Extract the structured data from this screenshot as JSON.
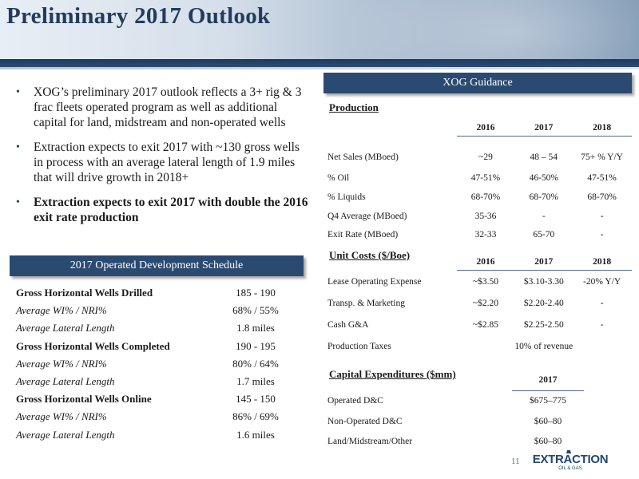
{
  "title": "Preliminary 2017 Outlook",
  "bullets": [
    {
      "text": "XOG’s preliminary 2017 outlook reflects a 3+ rig & 3 frac fleets operated program as well as additional capital for land, midstream and non-operated wells",
      "bold": false
    },
    {
      "text": "Extraction expects to exit 2017 with ~130 gross wells in process with an average lateral length of 1.9 miles that will drive growth in 2018+",
      "bold": false
    },
    {
      "text": "Extraction expects to exit 2017 with double the 2016 exit rate production",
      "bold": true
    }
  ],
  "schedule": {
    "title": "2017 Operated Development Schedule",
    "rows": [
      {
        "label": "Gross Horizontal Wells Drilled",
        "value": "185 - 190"
      },
      {
        "label": "Average WI% / NRI%",
        "value": "68% / 55%"
      },
      {
        "label": "Average Lateral Length",
        "value": "1.8 miles"
      },
      {
        "label": "Gross Horizontal Wells Completed",
        "value": "190 - 195"
      },
      {
        "label": "Average WI% / NRI%",
        "value": "80% / 64%"
      },
      {
        "label": "Average Lateral Length",
        "value": "1.7 miles"
      },
      {
        "label": "Gross Horizontal Wells Online",
        "value": "145 - 150"
      },
      {
        "label": "Average WI% / NRI%",
        "value": "86% / 69%"
      },
      {
        "label": "Average Lateral Length",
        "value": "1.6 miles"
      }
    ]
  },
  "guidance": {
    "title": "XOG Guidance",
    "production": {
      "title": "Production",
      "headers": [
        "2016",
        "2017",
        "2018"
      ],
      "rows": [
        {
          "label": "Net Sales (MBoed)",
          "values": [
            "~29",
            "48 – 54",
            "75+ % Y/Y"
          ]
        },
        {
          "label": "% Oil",
          "values": [
            "47-51%",
            "46-50%",
            "47-51%"
          ]
        },
        {
          "label": "% Liquids",
          "values": [
            "68-70%",
            "68-70%",
            "68-70%"
          ]
        },
        {
          "label": "Q4 Average (MBoed)",
          "values": [
            "35-36",
            "-",
            "-"
          ]
        },
        {
          "label": "Exit Rate  (MBoed)",
          "values": [
            "32-33",
            "65-70",
            "-"
          ]
        }
      ]
    },
    "unit_costs": {
      "title": "Unit Costs ($/Boe)",
      "headers": [
        "2016",
        "2017",
        "2018"
      ],
      "rows": [
        {
          "label": "Lease Operating Expense",
          "values": [
            "~$3.50",
            "$3.10-3.30",
            "-20% Y/Y"
          ]
        },
        {
          "label": "Transp. & Marketing",
          "values": [
            "~$2.20",
            "$2.20-2.40",
            "-"
          ]
        },
        {
          "label": "Cash G&A",
          "values": [
            "~$2.85",
            "$2.25-2.50",
            "-"
          ]
        }
      ],
      "production_taxes": {
        "label": "Production Taxes",
        "value": "10% of revenue"
      }
    },
    "capex": {
      "title": "Capital Expenditures ($mm)",
      "header": "2017",
      "rows": [
        {
          "label": "Operated D&C",
          "value": "$675–775"
        },
        {
          "label": "Non-Operated D&C",
          "value": "$60–80"
        },
        {
          "label": "Land/Midstream/Other",
          "value": "$60–80"
        }
      ]
    }
  },
  "page_number": "11",
  "logo": {
    "name": "EXTRACTION",
    "sub": "OIL & GAS"
  },
  "colors": {
    "navy": "#2b4a72",
    "title": "#233c5c"
  }
}
